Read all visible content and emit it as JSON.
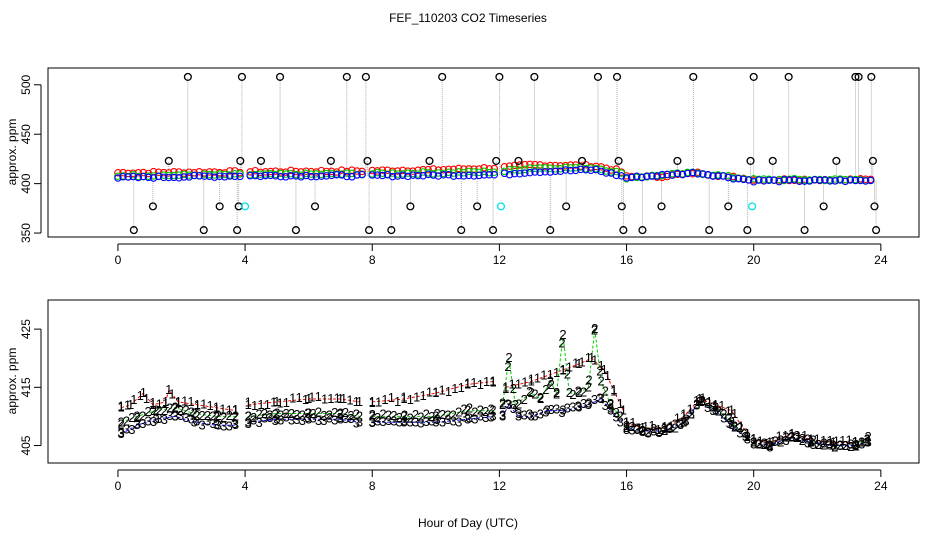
{
  "title": "FEF_110203  CO2 Timeseries",
  "xlabel": "Hour of Day (UTC)",
  "colors": {
    "c1": "#ff0000",
    "c2": "#00cc00",
    "c3": "#0000ff",
    "c4": "#00e5e5",
    "spike": "#000000",
    "axis": "#000000"
  },
  "chart_data": [
    {
      "type": "scatter",
      "name": "top-panel",
      "ylabel": "approx. ppm",
      "xlim": [
        -2.2,
        25.2
      ],
      "ylim": [
        346,
        517
      ],
      "xticks": [
        0,
        4,
        8,
        12,
        16,
        20,
        24
      ],
      "yticks": [
        350,
        400,
        450,
        500
      ],
      "series": [
        {
          "name": "1",
          "color": "#ff0000",
          "baseline": [
            [
              0,
              411
            ],
            [
              4,
              412
            ],
            [
              8,
              413
            ],
            [
              10,
              414
            ],
            [
              12,
              416
            ],
            [
              13,
              419
            ],
            [
              15,
              418
            ],
            [
              15.8,
              413
            ],
            [
              16,
              407
            ],
            [
              17,
              407
            ],
            [
              18.2,
              411
            ],
            [
              19.5,
              406
            ],
            [
              20,
              404
            ],
            [
              23.7,
              404
            ]
          ]
        },
        {
          "name": "2",
          "color": "#00cc00",
          "baseline": [
            [
              0,
              408
            ],
            [
              4,
              409
            ],
            [
              8,
              410
            ],
            [
              12,
              412
            ],
            [
              13,
              416
            ],
            [
              15,
              416
            ],
            [
              15.8,
              411
            ],
            [
              16,
              406
            ],
            [
              18.2,
              411
            ],
            [
              20,
              404
            ],
            [
              23.7,
              404
            ]
          ]
        },
        {
          "name": "3",
          "color": "#0000ff",
          "baseline": [
            [
              0,
              406
            ],
            [
              4,
              408
            ],
            [
              8,
              408
            ],
            [
              12,
              409
            ],
            [
              13,
              412
            ],
            [
              15,
              414
            ],
            [
              15.8,
              408
            ],
            [
              16,
              406
            ],
            [
              18.2,
              411
            ],
            [
              20,
              403
            ],
            [
              23.7,
              403
            ]
          ]
        }
      ],
      "spikes": [
        {
          "x": 0.5,
          "y": 353
        },
        {
          "x": 1.1,
          "y": 377
        },
        {
          "x": 1.6,
          "y": 423
        },
        {
          "x": 2.2,
          "y": 508
        },
        {
          "x": 2.7,
          "y": 353
        },
        {
          "x": 3.2,
          "y": 377
        },
        {
          "x": 3.75,
          "y": 353
        },
        {
          "x": 3.8,
          "y": 377
        },
        {
          "x": 3.85,
          "y": 423
        },
        {
          "x": 3.9,
          "y": 508
        },
        {
          "x": 4.5,
          "y": 423
        },
        {
          "x": 5.1,
          "y": 508
        },
        {
          "x": 5.6,
          "y": 353
        },
        {
          "x": 6.2,
          "y": 377
        },
        {
          "x": 6.7,
          "y": 423
        },
        {
          "x": 7.2,
          "y": 508
        },
        {
          "x": 7.8,
          "y": 508
        },
        {
          "x": 7.85,
          "y": 423
        },
        {
          "x": 7.9,
          "y": 353
        },
        {
          "x": 8.6,
          "y": 353
        },
        {
          "x": 9.2,
          "y": 377
        },
        {
          "x": 9.8,
          "y": 423
        },
        {
          "x": 10.2,
          "y": 508
        },
        {
          "x": 10.8,
          "y": 353
        },
        {
          "x": 11.3,
          "y": 377
        },
        {
          "x": 11.8,
          "y": 353
        },
        {
          "x": 11.9,
          "y": 423
        },
        {
          "x": 12.0,
          "y": 508
        },
        {
          "x": 12.6,
          "y": 423
        },
        {
          "x": 13.1,
          "y": 508
        },
        {
          "x": 13.6,
          "y": 353
        },
        {
          "x": 14.1,
          "y": 377
        },
        {
          "x": 14.6,
          "y": 423
        },
        {
          "x": 15.1,
          "y": 508
        },
        {
          "x": 15.7,
          "y": 508
        },
        {
          "x": 15.75,
          "y": 423
        },
        {
          "x": 15.85,
          "y": 377
        },
        {
          "x": 15.9,
          "y": 353
        },
        {
          "x": 16.5,
          "y": 353
        },
        {
          "x": 17.1,
          "y": 377
        },
        {
          "x": 17.6,
          "y": 423
        },
        {
          "x": 18.1,
          "y": 508
        },
        {
          "x": 18.6,
          "y": 353
        },
        {
          "x": 19.2,
          "y": 377
        },
        {
          "x": 19.8,
          "y": 353
        },
        {
          "x": 19.9,
          "y": 423
        },
        {
          "x": 20.0,
          "y": 508
        },
        {
          "x": 20.6,
          "y": 423
        },
        {
          "x": 21.1,
          "y": 508
        },
        {
          "x": 21.6,
          "y": 353
        },
        {
          "x": 22.2,
          "y": 377
        },
        {
          "x": 22.6,
          "y": 423
        },
        {
          "x": 23.2,
          "y": 508
        },
        {
          "x": 23.3,
          "y": 508
        },
        {
          "x": 23.7,
          "y": 508
        },
        {
          "x": 23.75,
          "y": 423
        },
        {
          "x": 23.8,
          "y": 377
        },
        {
          "x": 23.85,
          "y": 353
        }
      ],
      "cyan_points": [
        {
          "x": 4.0,
          "y": 377
        },
        {
          "x": 12.05,
          "y": 377
        },
        {
          "x": 19.95,
          "y": 377
        }
      ]
    },
    {
      "type": "line",
      "name": "bottom-panel",
      "ylabel": "approx. ppm",
      "xlim": [
        -2.2,
        25.2
      ],
      "ylim": [
        402,
        430
      ],
      "xticks": [
        0,
        4,
        8,
        12,
        16,
        20,
        24
      ],
      "yticks": [
        405,
        415,
        425
      ],
      "series": [
        {
          "name": "1",
          "color": "#ff0000",
          "label": "1",
          "segments": [
            [
              [
                0.1,
                411.5
              ],
              [
                0.4,
                412
              ],
              [
                0.8,
                414
              ],
              [
                1.1,
                412
              ],
              [
                1.5,
                412.5
              ],
              [
                1.6,
                414.5
              ],
              [
                1.9,
                412.5
              ],
              [
                2.5,
                412
              ],
              [
                3.1,
                411.5
              ],
              [
                3.7,
                411
              ]
            ],
            [
              [
                4.1,
                412
              ],
              [
                5,
                412.5
              ],
              [
                6,
                413
              ],
              [
                7,
                413
              ],
              [
                7.6,
                412.5
              ]
            ],
            [
              [
                8,
                412.5
              ],
              [
                9,
                413
              ],
              [
                10,
                414
              ],
              [
                11,
                415.5
              ],
              [
                11.8,
                416
              ]
            ],
            [
              [
                12.2,
                415
              ],
              [
                13,
                416
              ],
              [
                14,
                418
              ],
              [
                14.5,
                419
              ],
              [
                14.9,
                420
              ],
              [
                15.3,
                418
              ],
              [
                15.6,
                414.5
              ],
              [
                15.9,
                411
              ]
            ],
            [
              [
                16,
                409
              ],
              [
                16.5,
                408
              ],
              [
                17.2,
                408
              ],
              [
                17.8,
                410
              ],
              [
                18.3,
                413
              ],
              [
                18.8,
                412
              ],
              [
                19.3,
                411
              ],
              [
                19.8,
                407
              ]
            ],
            [
              [
                20,
                406
              ],
              [
                20.5,
                405.5
              ],
              [
                21.2,
                407
              ],
              [
                21.8,
                406
              ],
              [
                22.5,
                405.5
              ],
              [
                23.2,
                405.5
              ],
              [
                23.6,
                406
              ]
            ]
          ]
        },
        {
          "name": "2",
          "color": "#00cc00",
          "label": "2",
          "segments": [
            [
              [
                0.1,
                409
              ],
              [
                0.6,
                410
              ],
              [
                1.2,
                411
              ],
              [
                1.8,
                411.5
              ],
              [
                2.4,
                410.5
              ],
              [
                3.1,
                410
              ],
              [
                3.7,
                410
              ]
            ],
            [
              [
                4.1,
                410
              ],
              [
                5,
                410.5
              ],
              [
                6,
                410.5
              ],
              [
                7,
                410.5
              ],
              [
                7.6,
                410
              ]
            ],
            [
              [
                8,
                410
              ],
              [
                9,
                410
              ],
              [
                10,
                410
              ],
              [
                11,
                411
              ],
              [
                11.8,
                411
              ]
            ],
            [
              [
                12.1,
                412
              ],
              [
                12.3,
                420
              ],
              [
                12.5,
                412
              ],
              [
                13.0,
                414
              ],
              [
                13.3,
                413
              ],
              [
                13.6,
                416
              ],
              [
                13.8,
                414
              ],
              [
                14.0,
                424
              ],
              [
                14.2,
                414
              ],
              [
                14.5,
                414
              ],
              [
                14.8,
                415
              ],
              [
                15.0,
                425
              ],
              [
                15.2,
                416
              ],
              [
                15.5,
                412
              ],
              [
                15.8,
                410
              ]
            ],
            [
              [
                16,
                408
              ],
              [
                16.5,
                407.5
              ],
              [
                17.2,
                407.5
              ],
              [
                17.8,
                409
              ],
              [
                18.3,
                412.5
              ],
              [
                18.8,
                411.5
              ],
              [
                19.3,
                409
              ],
              [
                19.8,
                406.5
              ]
            ],
            [
              [
                20,
                405.5
              ],
              [
                20.5,
                405
              ],
              [
                21.2,
                406.5
              ],
              [
                21.8,
                405.5
              ],
              [
                22.5,
                405
              ],
              [
                23.2,
                405
              ],
              [
                23.6,
                406.5
              ]
            ]
          ]
        },
        {
          "name": "3",
          "color": "#0000ff",
          "label": "3",
          "segments": [
            [
              [
                0.1,
                407
              ],
              [
                0.6,
                408.5
              ],
              [
                1.2,
                409.5
              ],
              [
                1.8,
                410
              ],
              [
                2.4,
                409
              ],
              [
                3.1,
                408.5
              ],
              [
                3.7,
                408.5
              ]
            ],
            [
              [
                4.1,
                409
              ],
              [
                5,
                409.5
              ],
              [
                6,
                409.5
              ],
              [
                7,
                409.5
              ],
              [
                7.6,
                409
              ]
            ],
            [
              [
                8,
                409
              ],
              [
                9,
                409
              ],
              [
                10,
                409
              ],
              [
                11,
                409.5
              ],
              [
                11.8,
                410
              ]
            ],
            [
              [
                12.1,
                410
              ],
              [
                12.3,
                412
              ],
              [
                12.6,
                410
              ],
              [
                13.0,
                410
              ],
              [
                13.5,
                411
              ],
              [
                14.0,
                411
              ],
              [
                14.5,
                411.5
              ],
              [
                14.8,
                412
              ],
              [
                15.2,
                413
              ],
              [
                15.5,
                411
              ],
              [
                15.8,
                409
              ]
            ],
            [
              [
                16,
                408
              ],
              [
                16.5,
                407.5
              ],
              [
                17.2,
                407.5
              ],
              [
                17.8,
                409
              ],
              [
                18.3,
                412.5
              ],
              [
                18.8,
                411
              ],
              [
                19.3,
                408.5
              ],
              [
                19.8,
                406
              ]
            ],
            [
              [
                20,
                405.5
              ],
              [
                20.5,
                405
              ],
              [
                21.2,
                406.5
              ],
              [
                21.8,
                405.5
              ],
              [
                22.5,
                405
              ],
              [
                23.2,
                405
              ],
              [
                23.6,
                405.5
              ]
            ]
          ]
        }
      ]
    }
  ]
}
